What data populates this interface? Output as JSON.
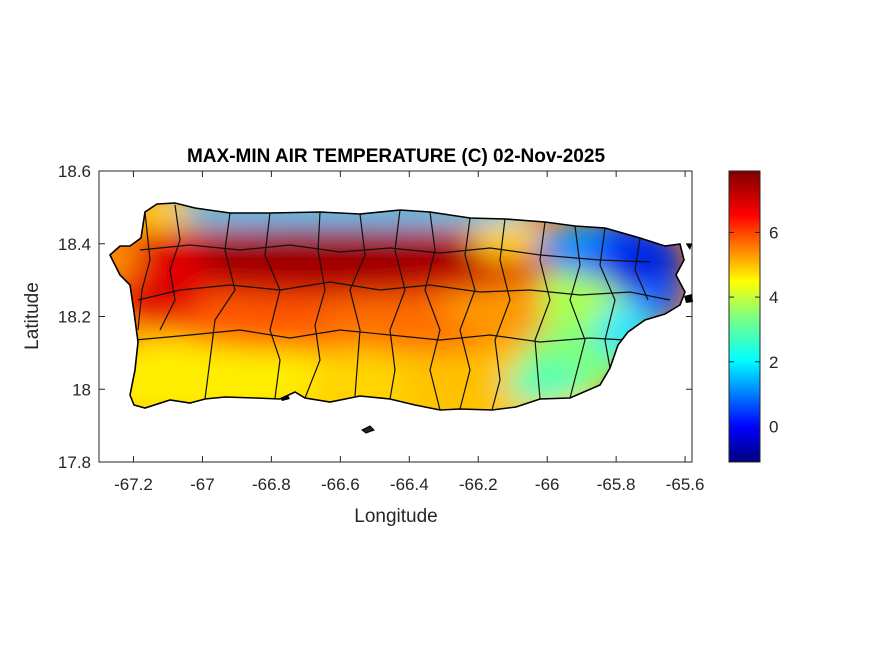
{
  "figure": {
    "title": "MAX-MIN AIR TEMPERATURE (C) 02-Nov-2025",
    "xlabel": "Longitude",
    "ylabel": "Latitude"
  },
  "chart_data": {
    "type": "heatmap",
    "title": "MAX-MIN AIR TEMPERATURE (C) 02-Nov-2025",
    "xlabel": "Longitude",
    "ylabel": "Latitude",
    "xlim": [
      -67.3,
      -65.58
    ],
    "ylim": [
      17.8,
      18.6
    ],
    "x_ticks": [
      -67.2,
      -67,
      -66.8,
      -66.6,
      -66.4,
      -66.2,
      -66,
      -65.8,
      -65.6
    ],
    "x_tick_labels": [
      "-67.2",
      "-67",
      "-66.8",
      "-66.6",
      "-66.4",
      "-66.2",
      "-66",
      "-65.8",
      "-65.6"
    ],
    "y_ticks": [
      17.8,
      18,
      18.2,
      18.4,
      18.6
    ],
    "y_tick_labels": [
      "17.8",
      "18",
      "18.2",
      "18.4",
      "18.6"
    ],
    "colormap": "jet",
    "colorbar": {
      "range": [
        -1.1,
        7.9
      ],
      "ticks": [
        0,
        2,
        4,
        6
      ],
      "tick_labels": [
        "0",
        "2",
        "4",
        "6"
      ]
    },
    "grid": false,
    "region": "Puerto Rico",
    "value_field_estimate": [
      {
        "area": "north-central band",
        "lon": -66.6,
        "lat": 18.38,
        "value": 7.5
      },
      {
        "area": "north-west interior",
        "lon": -66.95,
        "lat": 18.37,
        "value": 7.0
      },
      {
        "area": "central",
        "lon": -66.5,
        "lat": 18.22,
        "value": 6.0
      },
      {
        "area": "south coast",
        "lon": -66.7,
        "lat": 18.02,
        "value": 4.5
      },
      {
        "area": "south-west",
        "lon": -67.05,
        "lat": 18.05,
        "value": 4.5
      },
      {
        "area": "east-central",
        "lon": -66.1,
        "lat": 18.25,
        "value": 5.0
      },
      {
        "area": "south-east",
        "lon": -65.95,
        "lat": 18.05,
        "value": 3.0
      },
      {
        "area": "north coast rim",
        "lon": -66.8,
        "lat": 18.47,
        "value": 2.5
      },
      {
        "area": "north-east (El Yunque)",
        "lon": -65.75,
        "lat": 18.35,
        "value": 0.0
      },
      {
        "area": "far east tip",
        "lon": -65.65,
        "lat": 18.3,
        "value": 1.0
      }
    ]
  }
}
